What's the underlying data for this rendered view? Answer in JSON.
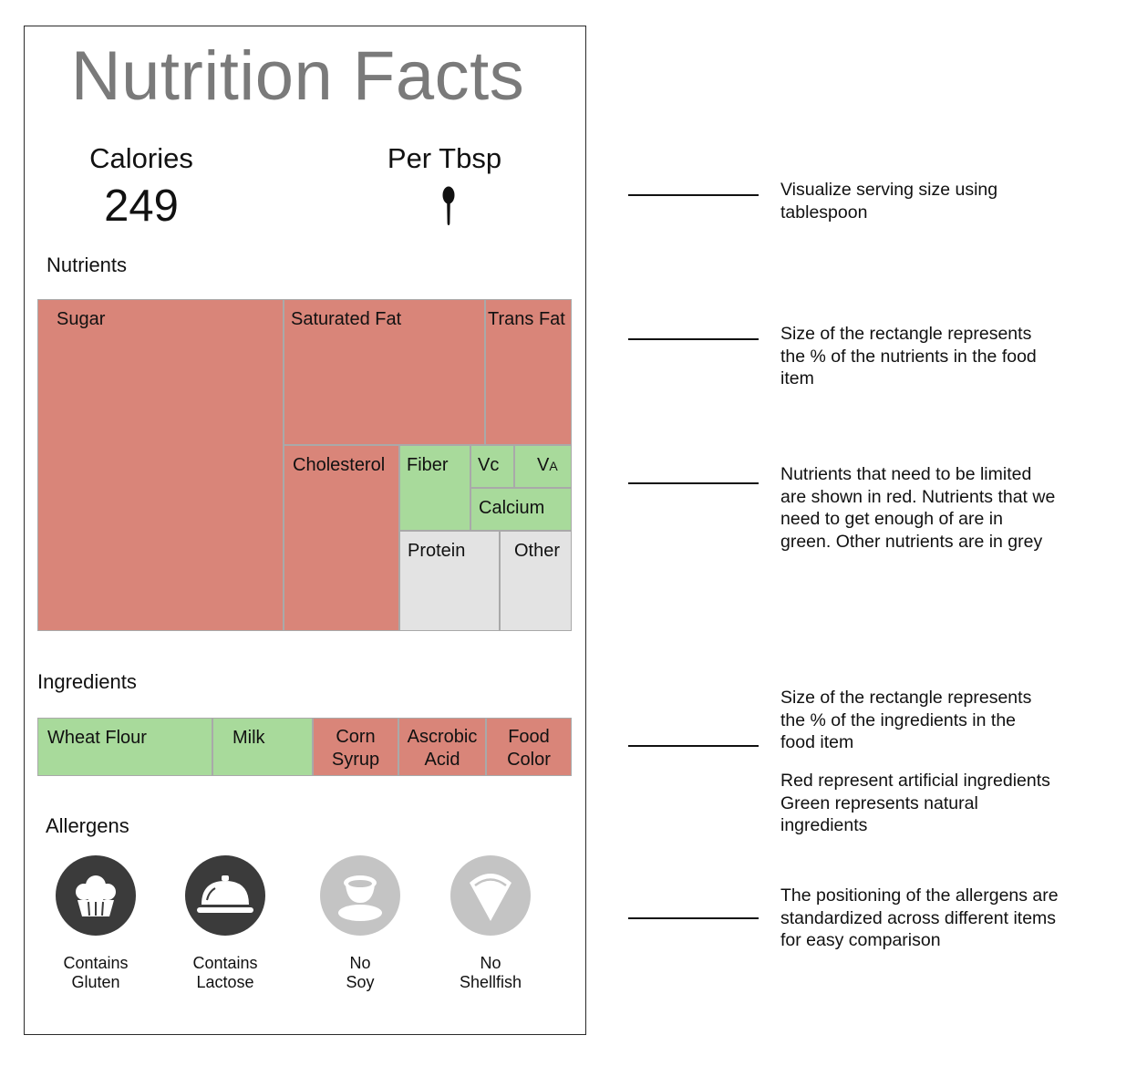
{
  "label": {
    "title": "Nutrition Facts",
    "calories_label": "Calories",
    "calories_value": "249",
    "serving_label": "Per Tbsp",
    "serving_icon": "tablespoon-icon"
  },
  "nutrients": {
    "section_label": "Nutrients",
    "legend_colors": {
      "limit": "#d98579",
      "enough": "#a8da9b",
      "other": "#e3e3e3"
    },
    "cells": {
      "sugar": "Sugar",
      "saturated_fat": "Saturated Fat",
      "trans_fat": "Trans Fat",
      "cholesterol": "Cholesterol",
      "fiber": "Fiber",
      "vc": "Vc",
      "va_main": "V",
      "va_sub": "A",
      "calcium": "Calcium",
      "protein": "Protein",
      "other": "Other"
    }
  },
  "ingredients": {
    "section_label": "Ingredients",
    "items": {
      "wheat_flour": "Wheat Flour",
      "milk": "Milk",
      "corn_syrup_1": "Corn",
      "corn_syrup_2": "Syrup",
      "ascorbic_acid_1": "Ascrobic",
      "ascorbic_acid_2": "Acid",
      "food_color_1": "Food",
      "food_color_2": "Color"
    }
  },
  "allergens": {
    "section_label": "Allergens",
    "items": [
      {
        "line1": "Contains",
        "line2": "Gluten",
        "icon": "cupcake-icon",
        "present": true
      },
      {
        "line1": "Contains",
        "line2": "Lactose",
        "icon": "cloche-icon",
        "present": true
      },
      {
        "line1": "No",
        "line2": "Soy",
        "icon": "soy-cup-icon",
        "present": false
      },
      {
        "line1": "No",
        "line2": "Shellfish",
        "icon": "shellfish-slice-icon",
        "present": false
      }
    ]
  },
  "annotations": {
    "serving": {
      "line1": "Visualize serving size using",
      "line2": "tablespoon"
    },
    "nutrient_size": {
      "line1": "Size of the rectangle represents",
      "line2": "the % of the nutrients in the food",
      "line3": "item"
    },
    "nutrient_color": {
      "line1": "Nutrients that need to be limited",
      "line2": "are shown in red. Nutrients that we",
      "line3": "need to get enough of are in",
      "line4": "green. Other nutrients are in grey"
    },
    "ingredient_size": {
      "line1": "Size of the rectangle represents",
      "line2": "the % of the ingredients in the",
      "line3": "food item"
    },
    "ingredient_color": {
      "line1": "Red represent artificial ingredients",
      "line2": "Green represents natural",
      "line3": "ingredients"
    },
    "allergen_position": {
      "line1": "The positioning of the allergens are",
      "line2": "standardized across different items",
      "line3": "for easy comparison"
    }
  }
}
